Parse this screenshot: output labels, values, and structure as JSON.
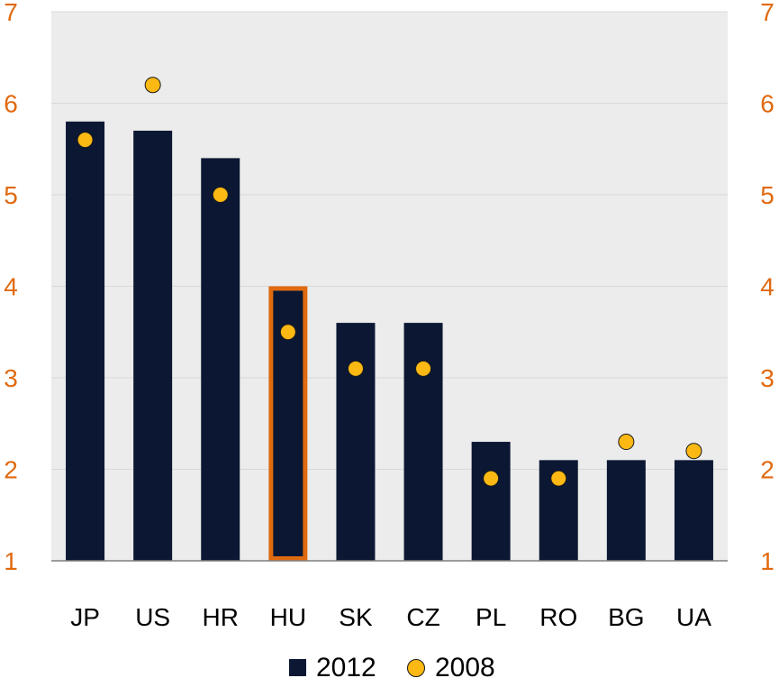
{
  "chart_data": {
    "type": "bar",
    "title": "",
    "xlabel": "",
    "ylabel": "",
    "categories": [
      "JP",
      "US",
      "HR",
      "HU",
      "SK",
      "CZ",
      "PL",
      "RO",
      "BG",
      "UA"
    ],
    "series": [
      {
        "name": "2012",
        "kind": "bar",
        "values": [
          5.8,
          5.7,
          5.4,
          4.0,
          3.6,
          3.6,
          2.3,
          2.1,
          2.1,
          2.1
        ]
      },
      {
        "name": "2008",
        "kind": "marker",
        "values": [
          5.6,
          6.2,
          5.0,
          3.5,
          3.1,
          3.1,
          1.9,
          1.9,
          2.3,
          2.2
        ]
      }
    ],
    "highlight_category": "HU",
    "ylim": [
      1,
      7
    ],
    "yticks": [
      1,
      2,
      3,
      4,
      5,
      6,
      7
    ],
    "secondary_yaxis": true,
    "grid": true,
    "legend_position": "bottom",
    "colors": {
      "bar": "#0c1833",
      "marker": "#fcb813",
      "marker_edge": "#1a1a1a",
      "highlight": "#e06a10",
      "tick_labels": "#e06a10",
      "plot_background": "#ececec",
      "grid": "#d8d8d8",
      "axis": "#7f7f7f"
    }
  }
}
